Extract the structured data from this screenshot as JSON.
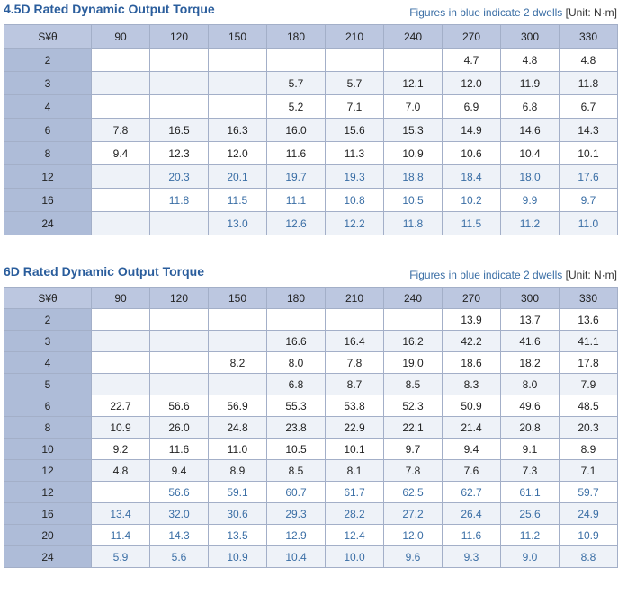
{
  "tables": [
    {
      "title": "4.5D Rated Dynamic Output Torque",
      "note": "Figures in blue indicate 2 dwells",
      "unit": "[Unit: N·m]",
      "header": [
        "S¥θ",
        "90",
        "120",
        "150",
        "180",
        "210",
        "240",
        "270",
        "300",
        "330"
      ],
      "rows": [
        {
          "label": "2",
          "cells": [
            null,
            null,
            null,
            null,
            null,
            null,
            "4.7",
            "4.8",
            "4.8"
          ]
        },
        {
          "label": "3",
          "cells": [
            null,
            null,
            null,
            "5.7",
            "5.7",
            "12.1",
            "12.0",
            "11.9",
            "11.8"
          ]
        },
        {
          "label": "4",
          "cells": [
            null,
            null,
            null,
            "5.2",
            "7.1",
            "7.0",
            "6.9",
            "6.8",
            "6.7"
          ]
        },
        {
          "label": "6",
          "cells": [
            "7.8",
            "16.5",
            "16.3",
            "16.0",
            "15.6",
            "15.3",
            "14.9",
            "14.6",
            "14.3"
          ]
        },
        {
          "label": "8",
          "cells": [
            "9.4",
            "12.3",
            "12.0",
            "11.6",
            "11.3",
            "10.9",
            "10.6",
            "10.4",
            "10.1"
          ]
        },
        {
          "label": "12",
          "color": "#3a6ea5",
          "cells": [
            null,
            "20.3",
            "20.1",
            "19.7",
            "19.3",
            "18.8",
            "18.4",
            "18.0",
            "17.6"
          ]
        },
        {
          "label": "16",
          "color": "#3a6ea5",
          "cells": [
            null,
            "11.8",
            "11.5",
            "11.1",
            "10.8",
            "10.5",
            "10.2",
            "9.9",
            "9.7"
          ]
        },
        {
          "label": "24",
          "color": "#3a6ea5",
          "cells": [
            null,
            null,
            "13.0",
            "12.6",
            "12.2",
            "11.8",
            "11.5",
            "11.2",
            "11.0"
          ]
        }
      ]
    },
    {
      "title": "6D Rated Dynamic Output Torque",
      "note": "Figures in blue indicate 2 dwells",
      "unit": "[Unit: N·m]",
      "header": [
        "S¥θ",
        "90",
        "120",
        "150",
        "180",
        "210",
        "240",
        "270",
        "300",
        "330"
      ],
      "rows": [
        {
          "label": "2",
          "cells": [
            null,
            null,
            null,
            null,
            null,
            null,
            "13.9",
            "13.7",
            "13.6"
          ]
        },
        {
          "label": "3",
          "cells": [
            null,
            null,
            null,
            "16.6",
            "16.4",
            "16.2",
            "42.2",
            "41.6",
            "41.1"
          ]
        },
        {
          "label": "4",
          "cells": [
            null,
            null,
            "8.2",
            "8.0",
            "7.8",
            "19.0",
            "18.6",
            "18.2",
            "17.8"
          ]
        },
        {
          "label": "5",
          "cells": [
            null,
            null,
            null,
            "6.8",
            "8.7",
            "8.5",
            "8.3",
            "8.0",
            "7.9"
          ]
        },
        {
          "label": "6",
          "cells": [
            "22.7",
            "56.6",
            "56.9",
            "55.3",
            "53.8",
            "52.3",
            "50.9",
            "49.6",
            "48.5"
          ]
        },
        {
          "label": "8",
          "cells": [
            "10.9",
            "26.0",
            "24.8",
            "23.8",
            "22.9",
            "22.1",
            "21.4",
            "20.8",
            "20.3"
          ]
        },
        {
          "label": "10",
          "cells": [
            "9.2",
            "11.6",
            "11.0",
            "10.5",
            "10.1",
            "9.7",
            "9.4",
            "9.1",
            "8.9"
          ]
        },
        {
          "label": "12",
          "cells": [
            "4.8",
            "9.4",
            "8.9",
            "8.5",
            "8.1",
            "7.8",
            "7.6",
            "7.3",
            "7.1"
          ]
        },
        {
          "label": "12",
          "color": "#3a6ea5",
          "cells": [
            null,
            "56.6",
            "59.1",
            "60.7",
            "61.7",
            "62.5",
            "62.7",
            "61.1",
            "59.7"
          ]
        },
        {
          "label": "16",
          "color": "#3a6ea5",
          "cells": [
            "13.4",
            "32.0",
            "30.6",
            "29.3",
            "28.2",
            "27.2",
            "26.4",
            "25.6",
            "24.9"
          ]
        },
        {
          "label": "20",
          "color": "#3a6ea5",
          "cells": [
            "11.4",
            "14.3",
            "13.5",
            "12.9",
            "12.4",
            "12.0",
            "11.6",
            "11.2",
            "10.9"
          ]
        },
        {
          "label": "24",
          "color": "#3a6ea5",
          "cells": [
            "5.9",
            "5.6",
            "10.9",
            "10.4",
            "10.0",
            "9.6",
            "9.3",
            "9.0",
            "8.8"
          ]
        }
      ]
    }
  ]
}
